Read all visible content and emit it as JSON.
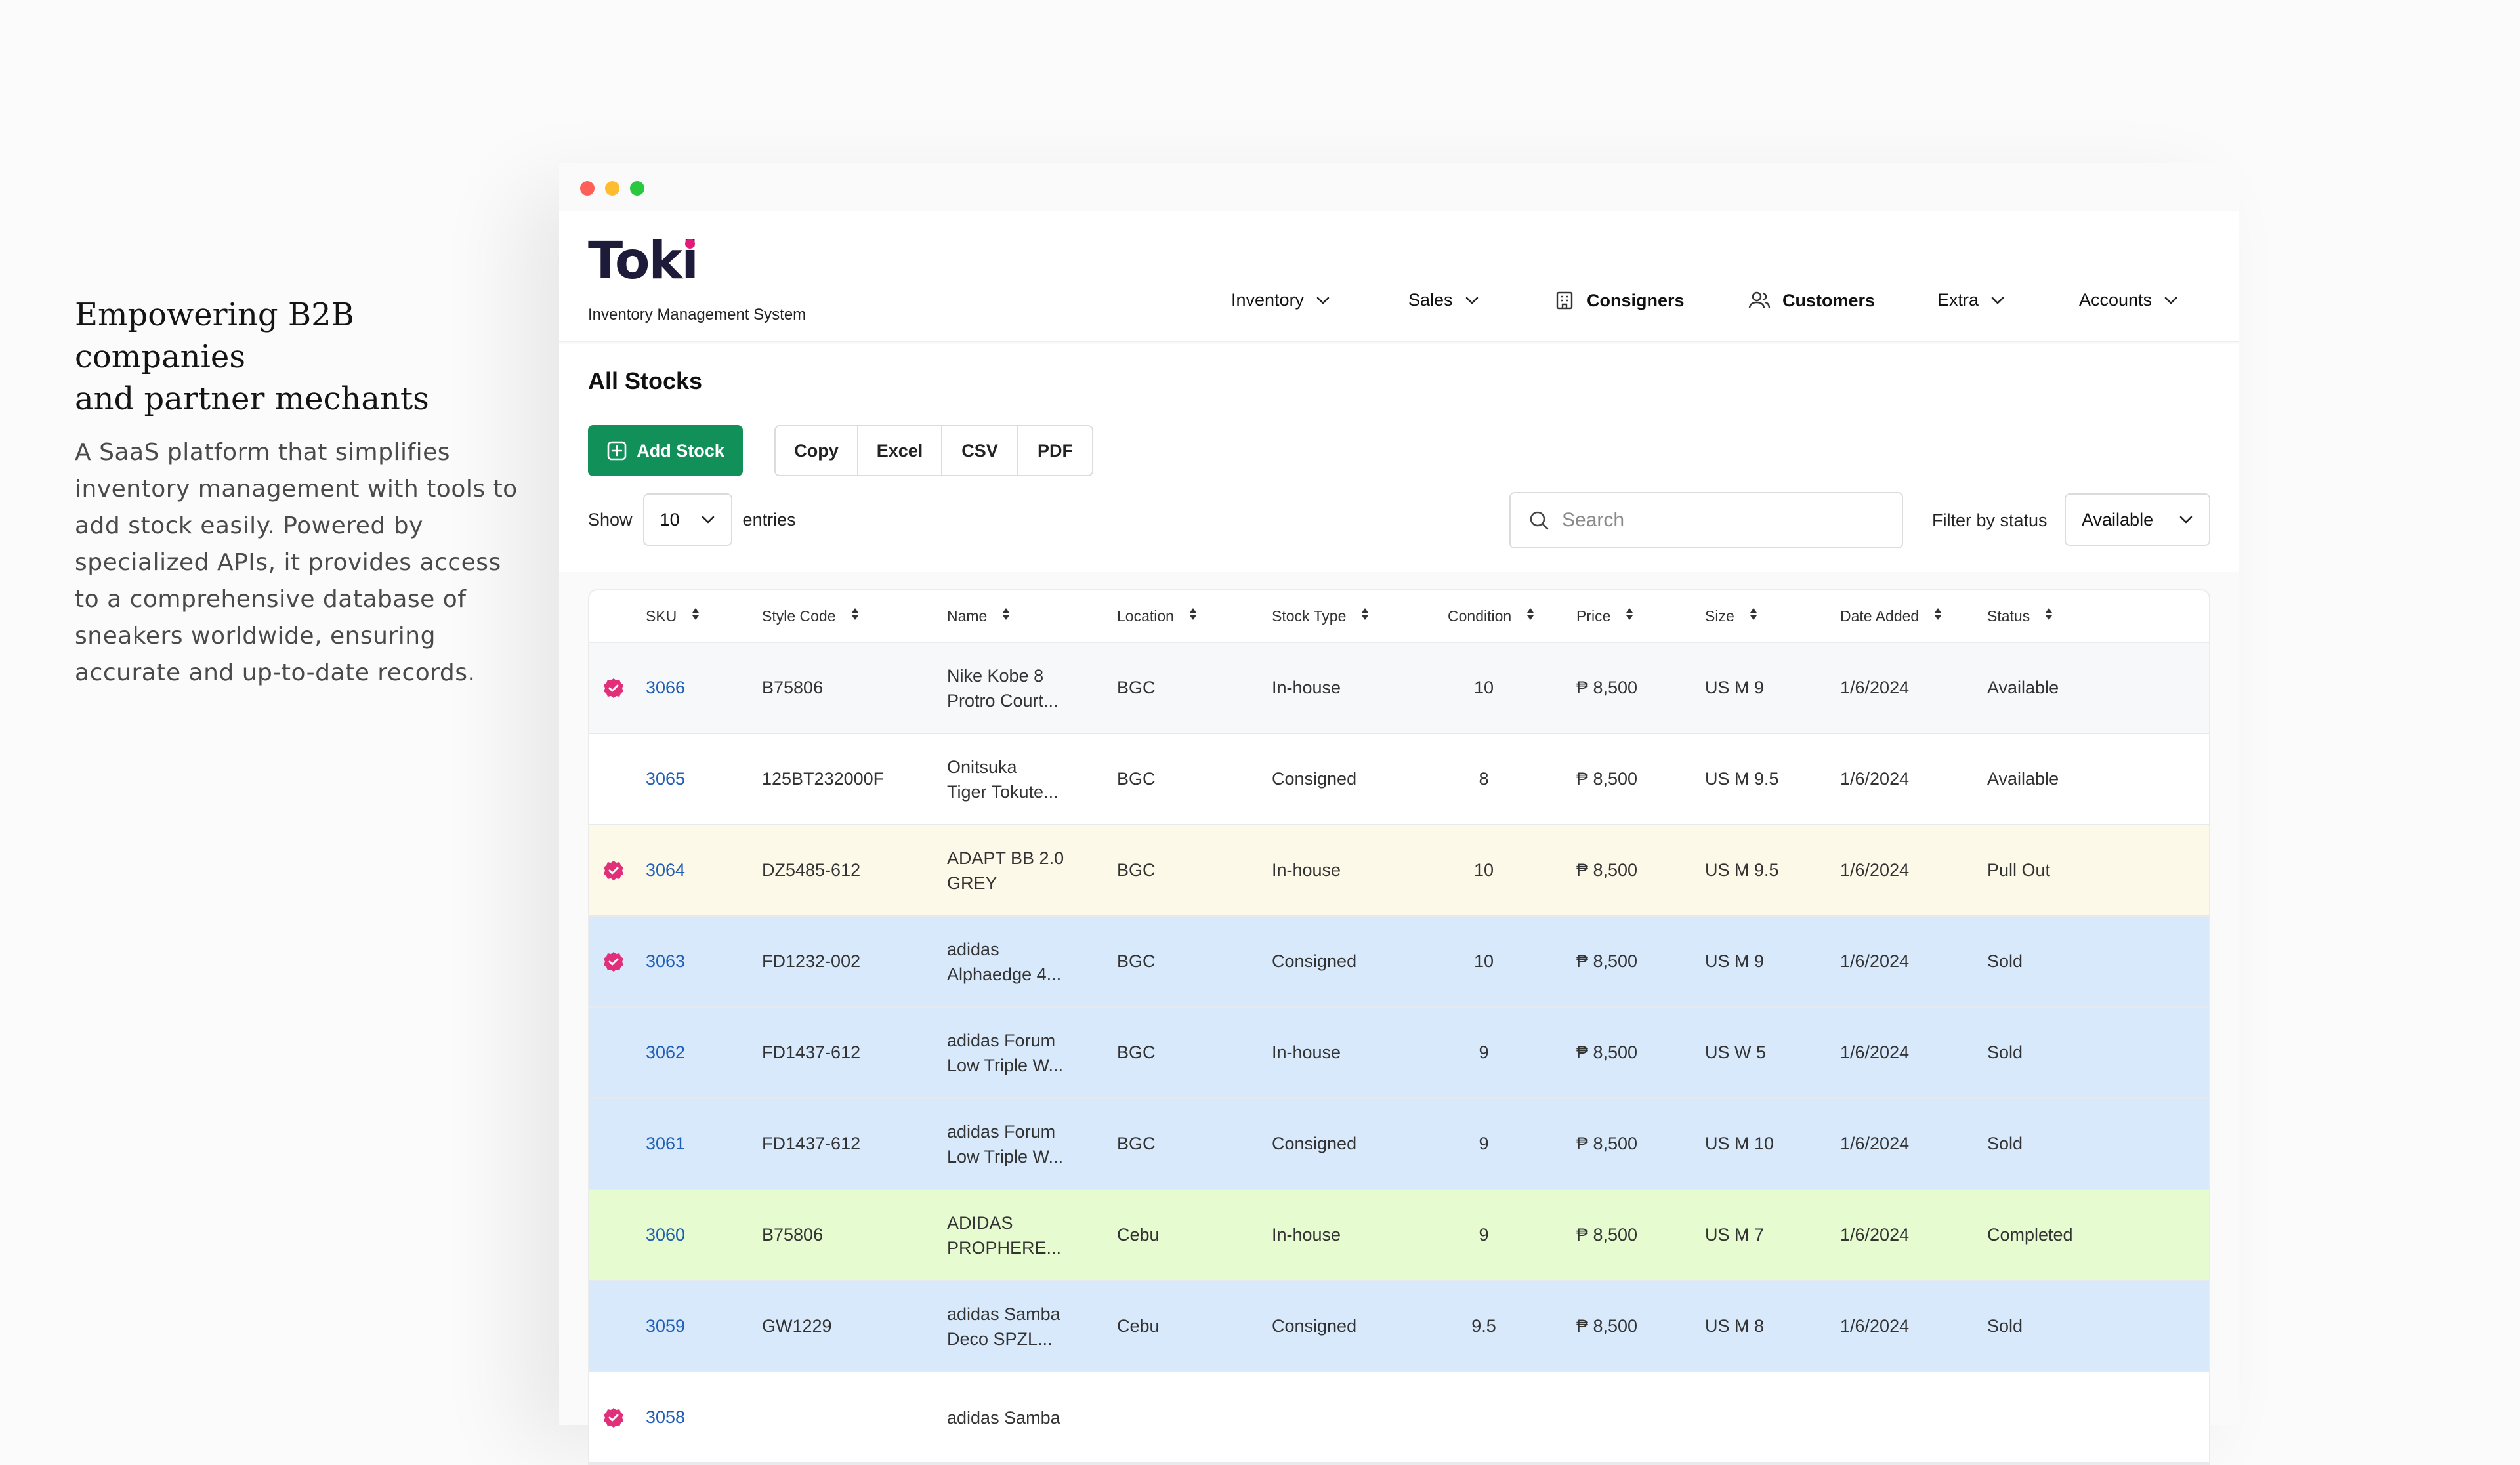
{
  "promo": {
    "heading_line1": "Empowering B2B companies",
    "heading_line2": "and partner mechants",
    "body": "A SaaS platform that simplifies inventory management with tools to add stock easily. Powered by specialized APIs, it provides access to a comprehensive database of sneakers worldwide, ensuring accurate and up-to-date records."
  },
  "app": {
    "logo": "Toki",
    "subtitle": "Inventory Management System",
    "brand_color": "#1e1b3a",
    "accent_color": "#e5197a"
  },
  "nav": {
    "inventory": "Inventory",
    "sales": "Sales",
    "consigners": "Consigners",
    "customers": "Customers",
    "extra": "Extra",
    "accounts": "Accounts"
  },
  "page": {
    "title": "All Stocks",
    "add_button": "Add Stock",
    "add_button_color": "#11905a",
    "export": [
      "Copy",
      "Excel",
      "CSV",
      "PDF"
    ],
    "show_label": "Show",
    "entries_value": "10",
    "entries_label": "entries",
    "search_placeholder": "Search",
    "filter_label": "Filter by status",
    "filter_value": "Available"
  },
  "table": {
    "headers": [
      "SKU",
      "Style Code",
      "Name",
      "Location",
      "Stock Type",
      "Condition",
      "Price",
      "Size",
      "Date Added",
      "Status"
    ],
    "rows": [
      {
        "verified": true,
        "sku": "3066",
        "style": "B75806",
        "name1": "Nike Kobe 8",
        "name2": "Protro Court...",
        "location": "BGC",
        "type": "In-house",
        "condition": "10",
        "price": "₱ 8,500",
        "size": "US M 9",
        "date": "1/6/2024",
        "status": "Available"
      },
      {
        "verified": false,
        "sku": "3065",
        "style": "125BT232000F",
        "name1": "Onitsuka",
        "name2": "Tiger Tokute...",
        "location": "BGC",
        "type": "Consigned",
        "condition": "8",
        "price": "₱ 8,500",
        "size": "US M 9.5",
        "date": "1/6/2024",
        "status": "Available"
      },
      {
        "verified": true,
        "sku": "3064",
        "style": "DZ5485-612",
        "name1": "ADAPT BB 2.0",
        "name2": "GREY",
        "location": "BGC",
        "type": "In-house",
        "condition": "10",
        "price": "₱ 8,500",
        "size": "US M 9.5",
        "date": "1/6/2024",
        "status": "Pull Out"
      },
      {
        "verified": true,
        "sku": "3063",
        "style": "FD1232-002",
        "name1": "adidas",
        "name2": "Alphaedge 4...",
        "location": "BGC",
        "type": "Consigned",
        "condition": "10",
        "price": "₱ 8,500",
        "size": "US M 9",
        "date": "1/6/2024",
        "status": "Sold"
      },
      {
        "verified": false,
        "sku": "3062",
        "style": "FD1437-612",
        "name1": "adidas Forum",
        "name2": "Low Triple W...",
        "location": "BGC",
        "type": "In-house",
        "condition": "9",
        "price": "₱ 8,500",
        "size": "US W 5",
        "date": "1/6/2024",
        "status": "Sold"
      },
      {
        "verified": false,
        "sku": "3061",
        "style": "FD1437-612",
        "name1": "adidas Forum",
        "name2": "Low Triple W...",
        "location": "BGC",
        "type": "Consigned",
        "condition": "9",
        "price": "₱ 8,500",
        "size": "US M 10",
        "date": "1/6/2024",
        "status": "Sold"
      },
      {
        "verified": false,
        "sku": "3060",
        "style": "B75806",
        "name1": "ADIDAS",
        "name2": "PROPHERE...",
        "location": "Cebu",
        "type": "In-house",
        "condition": "9",
        "price": "₱ 8,500",
        "size": "US M 7",
        "date": "1/6/2024",
        "status": "Completed"
      },
      {
        "verified": false,
        "sku": "3059",
        "style": "GW1229",
        "name1": "adidas Samba",
        "name2": "Deco SPZL...",
        "location": "Cebu",
        "type": "Consigned",
        "condition": "9.5",
        "price": "₱ 8,500",
        "size": "US M 8",
        "date": "1/6/2024",
        "status": "Sold"
      },
      {
        "verified": true,
        "sku": "3058",
        "style": "",
        "name1": "adidas Samba",
        "name2": "",
        "location": "",
        "type": "",
        "condition": "",
        "price": "",
        "size": "",
        "date": "",
        "status": ""
      }
    ],
    "status_colors": {
      "Available": "#ffffff",
      "Pull Out": "#fdf9e8",
      "Sold": "#d8e9fb",
      "Completed": "#e6fbd0"
    }
  }
}
